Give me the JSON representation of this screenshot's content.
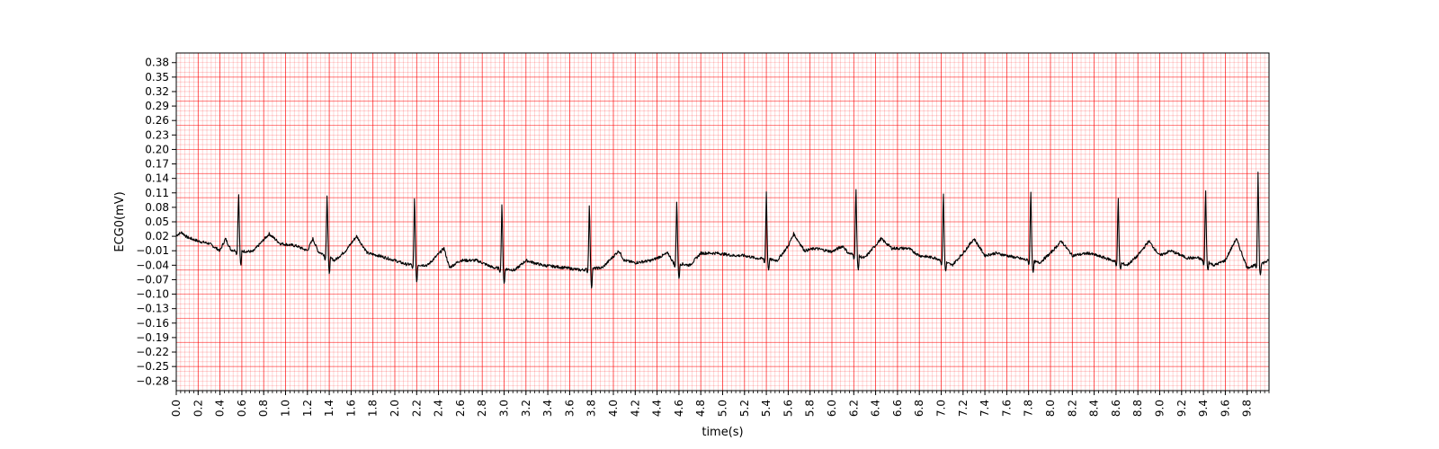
{
  "chart_data": {
    "type": "line",
    "title": "",
    "xlabel": "time(s)",
    "ylabel": "ECG0(mV)",
    "xlim": [
      0,
      10
    ],
    "ylim": [
      -0.3,
      0.4
    ],
    "x_ticks": [
      0.0,
      0.2,
      0.4,
      0.6,
      0.8,
      1.0,
      1.2,
      1.4,
      1.6,
      1.8,
      2.0,
      2.2,
      2.4,
      2.6,
      2.8,
      3.0,
      3.2,
      3.4,
      3.6,
      3.8,
      4.0,
      4.2,
      4.4,
      4.6,
      4.8,
      5.0,
      5.2,
      5.4,
      5.6,
      5.8,
      6.0,
      6.2,
      6.4,
      6.6,
      6.8,
      7.0,
      7.2,
      7.4,
      7.6,
      7.8,
      8.0,
      8.2,
      8.4,
      8.6,
      8.8,
      9.0,
      9.2,
      9.4,
      9.6,
      9.8
    ],
    "x_tick_labels": [
      "0.0",
      "0.2",
      "0.4",
      "0.6",
      "0.8",
      "1.0",
      "1.2",
      "1.4",
      "1.6",
      "1.8",
      "2.0",
      "2.2",
      "2.4",
      "2.6",
      "2.8",
      "3.0",
      "3.2",
      "3.4",
      "3.6",
      "3.8",
      "4.0",
      "4.2",
      "4.4",
      "4.6",
      "4.8",
      "5.0",
      "5.2",
      "5.4",
      "5.6",
      "5.8",
      "6.0",
      "6.2",
      "6.4",
      "6.6",
      "6.8",
      "7.0",
      "7.2",
      "7.4",
      "7.6",
      "7.8",
      "8.0",
      "8.2",
      "8.4",
      "8.6",
      "8.8",
      "9.0",
      "9.2",
      "9.4",
      "9.6",
      "9.8"
    ],
    "y_ticks": [
      0.38,
      0.35,
      0.32,
      0.29,
      0.26,
      0.23,
      0.2,
      0.17,
      0.14,
      0.11,
      0.08,
      0.05,
      0.02,
      -0.01,
      -0.04,
      -0.07,
      -0.1,
      -0.13,
      -0.16,
      -0.19,
      -0.22,
      -0.25,
      -0.28
    ],
    "y_tick_labels": [
      "0.38",
      "0.35",
      "0.32",
      "0.29",
      "0.26",
      "0.23",
      "0.20",
      "0.17",
      "0.14",
      "0.11",
      "0.08",
      "0.05",
      "0.02",
      "−0.01",
      "−0.04",
      "−0.07",
      "−0.10",
      "−0.13",
      "−0.16",
      "−0.19",
      "−0.22",
      "−0.25",
      "−0.28"
    ],
    "grid": {
      "major_step_s": 0.2,
      "minor_step_s": 0.04,
      "major_step_mv": 0.05,
      "minor_step_mv": 0.01
    },
    "colors": {
      "trace": "#000000",
      "grid_major": "#ff0000",
      "grid_minor": "#ff0000",
      "frame": "#000000"
    },
    "series": [
      {
        "beat_times": [
          0.57,
          1.38,
          2.18,
          2.98,
          3.78,
          4.58,
          5.4,
          6.22,
          7.02,
          7.82,
          8.62,
          9.42,
          9.9
        ],
        "r_peaks": [
          0.115,
          0.113,
          0.108,
          0.095,
          0.093,
          0.1,
          0.112,
          0.127,
          0.118,
          0.122,
          0.108,
          0.125,
          0.153
        ],
        "s_troughs": [
          -0.04,
          -0.058,
          -0.075,
          -0.078,
          -0.088,
          -0.068,
          -0.05,
          -0.05,
          -0.052,
          -0.055,
          -0.048,
          -0.05,
          -0.06
        ],
        "baseline": [
          [
            0.0,
            0.022
          ],
          [
            0.05,
            0.028
          ],
          [
            0.1,
            0.018
          ],
          [
            0.2,
            0.01
          ],
          [
            0.3,
            0.005
          ],
          [
            0.4,
            -0.01
          ],
          [
            0.45,
            0.015
          ],
          [
            0.5,
            -0.008
          ],
          [
            0.55,
            -0.01
          ],
          [
            0.7,
            -0.012
          ],
          [
            0.85,
            0.025
          ],
          [
            0.95,
            0.005
          ],
          [
            1.1,
            0.0
          ],
          [
            1.2,
            -0.01
          ],
          [
            1.25,
            0.015
          ],
          [
            1.3,
            -0.012
          ],
          [
            1.45,
            -0.03
          ],
          [
            1.55,
            -0.01
          ],
          [
            1.65,
            0.02
          ],
          [
            1.75,
            -0.015
          ],
          [
            1.85,
            -0.02
          ],
          [
            2.0,
            -0.03
          ],
          [
            2.1,
            -0.038
          ],
          [
            2.3,
            -0.04
          ],
          [
            2.45,
            -0.005
          ],
          [
            2.5,
            -0.045
          ],
          [
            2.6,
            -0.03
          ],
          [
            2.75,
            -0.03
          ],
          [
            2.9,
            -0.045
          ],
          [
            3.1,
            -0.05
          ],
          [
            3.2,
            -0.03
          ],
          [
            3.35,
            -0.04
          ],
          [
            3.55,
            -0.045
          ],
          [
            3.7,
            -0.05
          ],
          [
            3.9,
            -0.045
          ],
          [
            4.05,
            -0.01
          ],
          [
            4.1,
            -0.03
          ],
          [
            4.2,
            -0.035
          ],
          [
            4.35,
            -0.03
          ],
          [
            4.5,
            -0.015
          ],
          [
            4.55,
            -0.035
          ],
          [
            4.7,
            -0.04
          ],
          [
            4.8,
            -0.015
          ],
          [
            4.95,
            -0.015
          ],
          [
            5.1,
            -0.02
          ],
          [
            5.2,
            -0.02
          ],
          [
            5.3,
            -0.025
          ],
          [
            5.5,
            -0.03
          ],
          [
            5.6,
            0.0
          ],
          [
            5.65,
            0.025
          ],
          [
            5.75,
            -0.01
          ],
          [
            5.85,
            -0.005
          ],
          [
            6.0,
            -0.012
          ],
          [
            6.1,
            0.0
          ],
          [
            6.15,
            -0.015
          ],
          [
            6.3,
            -0.025
          ],
          [
            6.45,
            0.015
          ],
          [
            6.55,
            -0.005
          ],
          [
            6.7,
            -0.005
          ],
          [
            6.8,
            -0.02
          ],
          [
            6.95,
            -0.025
          ],
          [
            7.1,
            -0.04
          ],
          [
            7.2,
            -0.015
          ],
          [
            7.3,
            0.015
          ],
          [
            7.4,
            -0.02
          ],
          [
            7.5,
            -0.015
          ],
          [
            7.7,
            -0.025
          ],
          [
            7.9,
            -0.035
          ],
          [
            8.0,
            -0.015
          ],
          [
            8.1,
            0.01
          ],
          [
            8.2,
            -0.02
          ],
          [
            8.35,
            -0.015
          ],
          [
            8.5,
            -0.025
          ],
          [
            8.7,
            -0.04
          ],
          [
            8.8,
            -0.02
          ],
          [
            8.9,
            0.01
          ],
          [
            9.0,
            -0.02
          ],
          [
            9.1,
            -0.01
          ],
          [
            9.25,
            -0.025
          ],
          [
            9.35,
            -0.025
          ],
          [
            9.5,
            -0.04
          ],
          [
            9.6,
            -0.03
          ],
          [
            9.7,
            0.015
          ],
          [
            9.8,
            -0.045
          ],
          [
            9.95,
            -0.035
          ],
          [
            10.0,
            -0.03
          ]
        ]
      }
    ]
  }
}
